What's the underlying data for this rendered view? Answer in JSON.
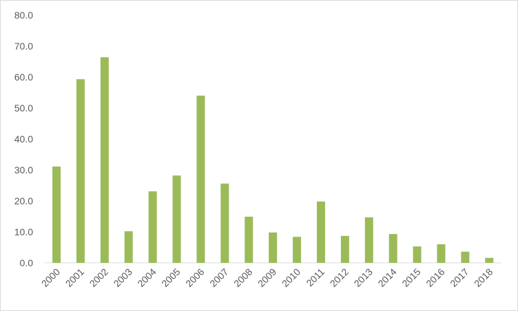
{
  "chart_data": {
    "type": "bar",
    "categories": [
      "2000",
      "2001",
      "2002",
      "2003",
      "2004",
      "2005",
      "2006",
      "2007",
      "2008",
      "2009",
      "2010",
      "2011",
      "2012",
      "2013",
      "2014",
      "2015",
      "2016",
      "2017",
      "2018"
    ],
    "values": [
      31.1,
      59.3,
      66.4,
      10.2,
      23.1,
      28.2,
      54.0,
      25.6,
      14.9,
      9.8,
      8.4,
      19.8,
      8.7,
      14.7,
      9.3,
      5.3,
      6.0,
      3.6,
      1.6
    ],
    "color": "#9bbb59",
    "ylim": [
      0,
      80
    ],
    "yticks": [
      {
        "value": 0,
        "label": "0.0"
      },
      {
        "value": 10,
        "label": "10.0"
      },
      {
        "value": 20,
        "label": "20.0"
      },
      {
        "value": 30,
        "label": "30.0"
      },
      {
        "value": 40,
        "label": "40.0"
      },
      {
        "value": 50,
        "label": "50.0"
      },
      {
        "value": 60,
        "label": "60.0"
      },
      {
        "value": 70,
        "label": "70.0"
      },
      {
        "value": 80,
        "label": "80.0"
      }
    ],
    "grid": false
  }
}
